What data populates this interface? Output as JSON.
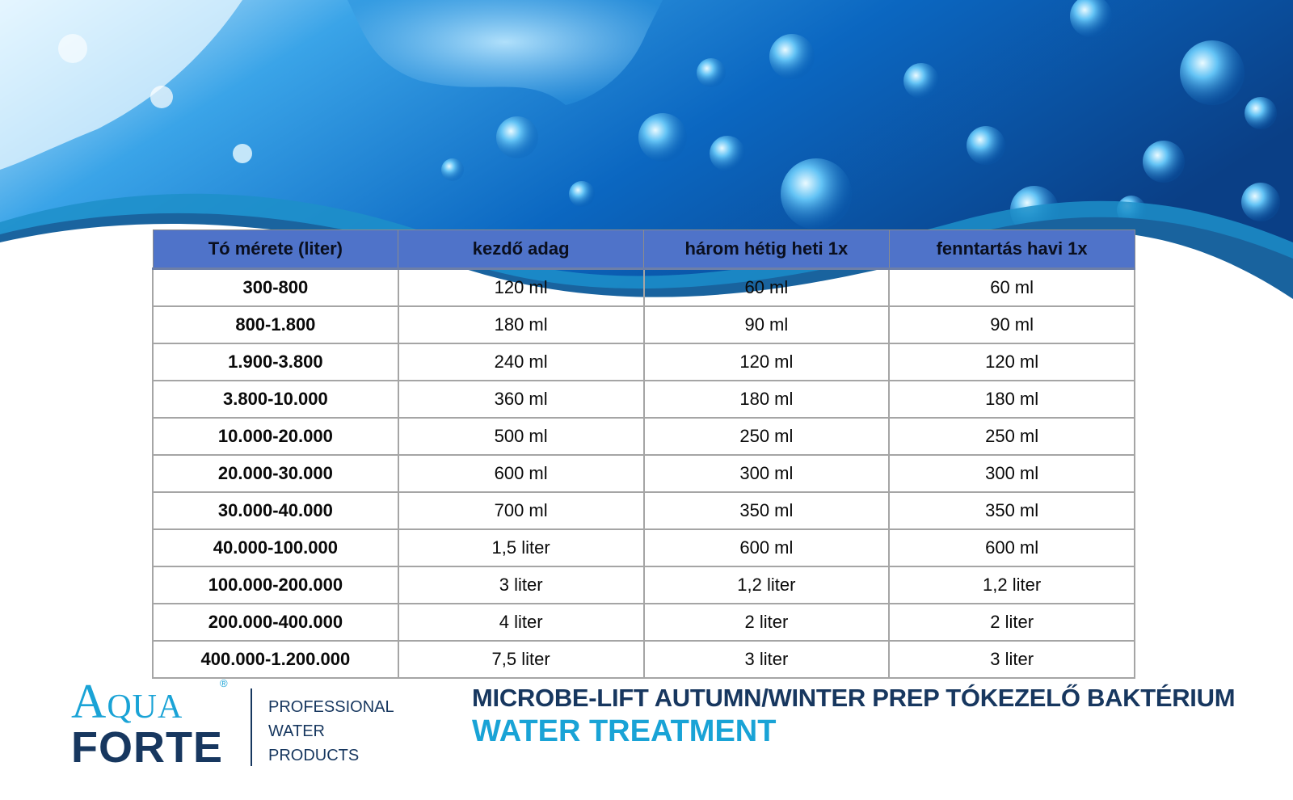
{
  "table": {
    "headers": [
      "Tó mérete (liter)",
      "kezdő adag",
      "három hétig heti 1x",
      "fenntartás havi 1x"
    ],
    "rows": [
      [
        "300-800",
        "120 ml",
        "60 ml",
        "60 ml"
      ],
      [
        "800-1.800",
        "180 ml",
        "90 ml",
        "90 ml"
      ],
      [
        "1.900-3.800",
        "240 ml",
        "120 ml",
        "120 ml"
      ],
      [
        "3.800-10.000",
        "360 ml",
        "180 ml",
        "180 ml"
      ],
      [
        "10.000-20.000",
        "500 ml",
        "250 ml",
        "250 ml"
      ],
      [
        "20.000-30.000",
        "600 ml",
        "300 ml",
        "300 ml"
      ],
      [
        "30.000-40.000",
        "700 ml",
        "350 ml",
        "350 ml"
      ],
      [
        "40.000-100.000",
        "1,5 liter",
        "600 ml",
        "600 ml"
      ],
      [
        "100.000-200.000",
        "3 liter",
        "1,2 liter",
        "1,2 liter"
      ],
      [
        "200.000-400.000",
        "4 liter",
        "2 liter",
        "2 liter"
      ],
      [
        "400.000-1.200.000",
        "7,5 liter",
        "3 liter",
        "3 liter"
      ]
    ]
  },
  "logo": {
    "word1": "Aqua",
    "word2": "FORTE",
    "registered": "®",
    "tagline": [
      "PROFESSIONAL",
      "WATER",
      "PRODUCTS"
    ]
  },
  "product": {
    "title": "MICROBE-LIFT AUTUMN/WINTER PREP TÓKEZELŐ BAKTÉRIUM",
    "subtitle": "WATER TREATMENT"
  },
  "colors": {
    "header_bg": "#4f73c9",
    "brand_dark": "#17375f",
    "brand_light": "#19a3d6",
    "water_blue": "#0f6fc4"
  }
}
